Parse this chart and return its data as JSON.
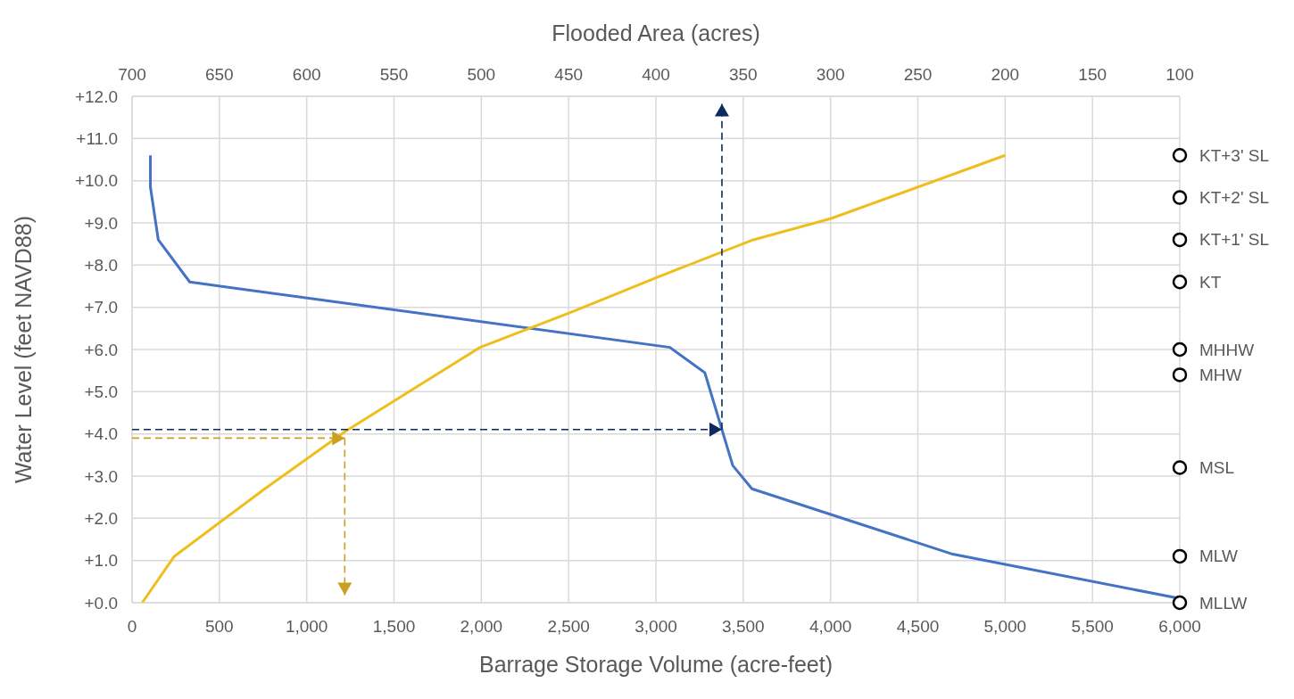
{
  "chart_data": {
    "type": "line",
    "xlabel": "Barrage Storage Volume (acre-feet)",
    "x2label": "Flooded Area (acres)",
    "ylabel": "Water Level (feet NAVD88)",
    "xlim": [
      0,
      6000
    ],
    "xticks": [
      0,
      500,
      {
        "value": 1000,
        "label": "1,000"
      },
      {
        "value": 1500,
        "label": "1,500"
      },
      {
        "value": 2000,
        "label": "2,000"
      },
      {
        "value": 2500,
        "label": "2,500"
      },
      {
        "value": 3000,
        "label": "3,000"
      },
      {
        "value": 3500,
        "label": "3,500"
      },
      {
        "value": 4000,
        "label": "4,000"
      },
      {
        "value": 4500,
        "label": "4,500"
      },
      {
        "value": 5000,
        "label": "5,000"
      },
      {
        "value": 5500,
        "label": "5,500"
      },
      {
        "value": 6000,
        "label": "6,000"
      }
    ],
    "x2lim": [
      700,
      100
    ],
    "x2ticks": [
      700,
      650,
      600,
      550,
      500,
      450,
      400,
      350,
      300,
      250,
      200,
      150,
      100
    ],
    "ylim": [
      0,
      12
    ],
    "yticks": [
      {
        "value": 0,
        "label": "+0.0"
      },
      {
        "value": 1,
        "label": "+1.0"
      },
      {
        "value": 2,
        "label": "+2.0"
      },
      {
        "value": 3,
        "label": "+3.0"
      },
      {
        "value": 4,
        "label": "+4.0"
      },
      {
        "value": 5,
        "label": "+5.0"
      },
      {
        "value": 6,
        "label": "+6.0"
      },
      {
        "value": 7,
        "label": "+7.0"
      },
      {
        "value": 8,
        "label": "+8.0"
      },
      {
        "value": 9,
        "label": "+9.0"
      },
      {
        "value": 10,
        "label": "+10.0"
      },
      {
        "value": 11,
        "label": "+11.0"
      },
      {
        "value": 12,
        "label": "+12.0"
      }
    ],
    "grid": true,
    "legend": false,
    "series": [
      {
        "color": "#4472c4",
        "axis": "x2",
        "marker": "none",
        "line_style": "solid",
        "x": [
          689.5,
          689.5,
          685,
          667,
          392,
          372,
          356,
          345,
          230,
          100
        ],
        "values": [
          10.6,
          9.85,
          8.6,
          7.6,
          6.05,
          5.45,
          3.25,
          2.7,
          1.15,
          0.1
        ]
      },
      {
        "color": "#eebf1c",
        "marker": "none",
        "line_style": "solid",
        "x": [
          58,
          242,
          760,
          1218,
          1993,
          2525,
          3000,
          3558,
          4000,
          5000
        ],
        "values": [
          0,
          1.1,
          2.7,
          4.05,
          6.05,
          6.9,
          7.7,
          8.6,
          9.1,
          10.6
        ]
      },
      {
        "type": "scatter",
        "color": "#000000",
        "marker": "circle",
        "x": [
          6000,
          6000,
          6000,
          6000,
          6000,
          6000,
          6000,
          6000,
          6000
        ],
        "values": [
          10.6,
          9.6,
          8.6,
          7.6,
          6.0,
          5.4,
          3.2,
          1.1,
          0.0
        ],
        "value_labels": [
          "KT+3' SL",
          "KT+2' SL",
          "KT+1' SL",
          "KT",
          "MHHW",
          "MHW",
          "MSL",
          "MLW",
          "MLLW"
        ]
      }
    ]
  }
}
